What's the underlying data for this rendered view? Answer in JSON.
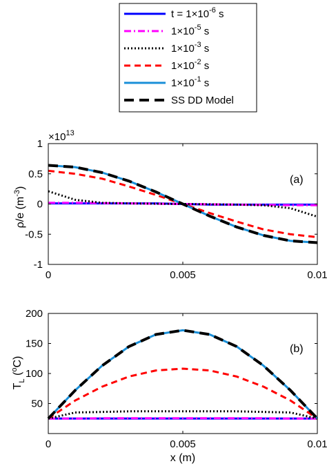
{
  "chart_data": [
    {
      "type": "line",
      "panel_label": "(a)",
      "ylabel_main": "ρ/e (m",
      "ylabel_sup": "-3",
      "ylabel_close": ")",
      "exponent_base": "×10",
      "exponent_power": "13",
      "x_ticks": [
        "0",
        "0.005",
        "0.01"
      ],
      "y_ticks": [
        "1",
        "0.5",
        "0",
        "-0.5",
        "-1"
      ],
      "xlim": [
        0,
        0.01
      ],
      "ylim": [
        -1,
        1
      ],
      "y_unit_scale": 10000000000000.0,
      "grid": false,
      "x": [
        0,
        0.001,
        0.002,
        0.003,
        0.004,
        0.005,
        0.006,
        0.007,
        0.008,
        0.009,
        0.01
      ],
      "series": [
        {
          "key": "t1",
          "values": [
            0.01,
            0.01,
            0.01,
            0.01,
            0.01,
            0.0,
            -0.01,
            -0.01,
            -0.01,
            -0.01,
            -0.01
          ]
        },
        {
          "key": "t2",
          "values": [
            0.02,
            0.02,
            0.015,
            0.01,
            0.005,
            0.0,
            -0.005,
            -0.01,
            -0.015,
            -0.02,
            -0.02
          ]
        },
        {
          "key": "t3",
          "values": [
            0.21,
            0.07,
            0.02,
            0.01,
            0.005,
            0.0,
            -0.005,
            -0.01,
            -0.02,
            -0.07,
            -0.21
          ]
        },
        {
          "key": "t4",
          "values": [
            0.55,
            0.5,
            0.42,
            0.29,
            0.15,
            0.0,
            -0.15,
            -0.29,
            -0.42,
            -0.5,
            -0.55
          ]
        },
        {
          "key": "t5",
          "values": [
            0.64,
            0.61,
            0.52,
            0.38,
            0.2,
            0.0,
            -0.2,
            -0.38,
            -0.52,
            -0.61,
            -0.64
          ]
        },
        {
          "key": "ss",
          "values": [
            0.64,
            0.61,
            0.52,
            0.38,
            0.2,
            0.0,
            -0.2,
            -0.38,
            -0.52,
            -0.61,
            -0.64
          ]
        }
      ]
    },
    {
      "type": "line",
      "panel_label": "(b)",
      "ylabel_main": "T",
      "ylabel_sub": "L",
      "ylabel_rest": " (",
      "ylabel_sup": "o",
      "ylabel_close": "C)",
      "xlabel": "x (m)",
      "x_ticks": [
        "0",
        "0.005",
        "0.01"
      ],
      "y_ticks": [
        "200",
        "150",
        "100",
        "50"
      ],
      "xlim": [
        0,
        0.01
      ],
      "ylim": [
        0,
        200
      ],
      "grid": false,
      "x": [
        0,
        0.001,
        0.002,
        0.003,
        0.004,
        0.005,
        0.006,
        0.007,
        0.008,
        0.009,
        0.01
      ],
      "series": [
        {
          "key": "t1",
          "values": [
            25,
            25,
            25,
            25,
            25,
            25,
            25,
            25,
            25,
            25,
            25
          ]
        },
        {
          "key": "t2",
          "values": [
            25,
            25,
            25.5,
            25.5,
            25.5,
            25.5,
            25.5,
            25.5,
            25.5,
            25,
            25
          ]
        },
        {
          "key": "t3",
          "values": [
            25,
            35,
            36,
            37,
            37,
            37,
            37,
            37,
            36,
            35,
            25
          ]
        },
        {
          "key": "t4",
          "values": [
            25,
            55,
            78,
            95,
            105,
            108,
            105,
            95,
            78,
            55,
            25
          ]
        },
        {
          "key": "t5",
          "values": [
            25,
            72,
            113,
            145,
            165,
            172,
            165,
            145,
            113,
            72,
            25
          ]
        },
        {
          "key": "ss",
          "values": [
            25,
            72,
            113,
            145,
            165,
            172,
            165,
            145,
            113,
            72,
            25
          ]
        }
      ]
    }
  ],
  "legend": {
    "placement": "top",
    "entries": [
      {
        "key": "t1",
        "prefix": "t = ",
        "base": "1×10",
        "sup": "-6",
        "suffix": " s",
        "color": "#0000ff",
        "dash": "",
        "width": 3
      },
      {
        "key": "t2",
        "prefix": "",
        "base": "1×10",
        "sup": "-5",
        "suffix": " s",
        "color": "#ff00ff",
        "dash": "10,4,2,4",
        "width": 3
      },
      {
        "key": "t3",
        "prefix": "",
        "base": "1×10",
        "sup": "-3",
        "suffix": " s",
        "color": "#000000",
        "dash": "2,3",
        "width": 3
      },
      {
        "key": "t4",
        "prefix": "",
        "base": "1×10",
        "sup": "-2",
        "suffix": " s",
        "color": "#ff0000",
        "dash": "9,6",
        "width": 3
      },
      {
        "key": "t5",
        "prefix": "",
        "base": "1×10",
        "sup": "-1",
        "suffix": " s",
        "color": "#1a8fd8",
        "dash": "",
        "width": 3
      },
      {
        "key": "ss",
        "prefix": "",
        "label": "SS DD Model",
        "color": "#000000",
        "dash": "14,8",
        "width": 4
      }
    ]
  }
}
